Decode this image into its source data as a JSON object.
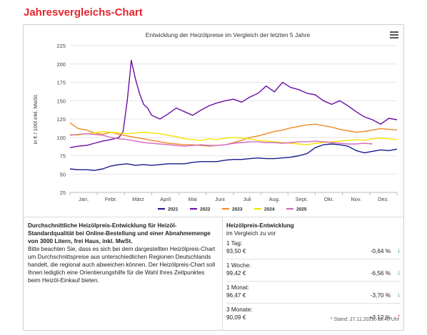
{
  "page": {
    "title": "Jahresvergleichs-Chart"
  },
  "menu": {
    "icon": "hamburger-menu-icon"
  },
  "chart_data": {
    "type": "line",
    "title": "Entwicklung der Heizölpreise im Vergleich der letzten 5 Jahre",
    "ylabel": "in € / 100l inkl. MwSt.",
    "ylim": [
      25,
      225
    ],
    "yticks": [
      25,
      50,
      75,
      100,
      125,
      150,
      175,
      200,
      225
    ],
    "xlim": [
      0,
      12
    ],
    "month_labels": [
      "Jan.",
      "Febr.",
      "März",
      "April",
      "Mai",
      "Juni",
      "Juli",
      "Aug.",
      "Sept.",
      "Okt.",
      "Nov.",
      "Dez."
    ],
    "grid": true,
    "legend_position": "bottom",
    "series": [
      {
        "name": "2021",
        "color": "#1a1a8c",
        "x": [
          0.0,
          0.3,
          0.6,
          0.9,
          1.2,
          1.5,
          1.8,
          2.1,
          2.4,
          2.7,
          3.0,
          3.3,
          3.6,
          3.9,
          4.2,
          4.5,
          4.8,
          5.1,
          5.4,
          5.7,
          6.0,
          6.3,
          6.6,
          6.9,
          7.2,
          7.5,
          7.8,
          8.1,
          8.4,
          8.7,
          9.0,
          9.3,
          9.6,
          9.9,
          10.2,
          10.5,
          10.8,
          11.1,
          11.4,
          11.7,
          12.0
        ],
        "y": [
          57,
          56,
          56,
          55,
          57,
          61,
          63,
          64,
          62,
          63,
          62,
          63,
          64,
          64,
          64,
          66,
          67,
          67,
          67,
          69,
          70,
          70,
          71,
          72,
          71,
          71,
          72,
          73,
          75,
          78,
          86,
          90,
          91,
          90,
          88,
          82,
          79,
          81,
          83,
          82,
          84
        ]
      },
      {
        "name": "2022",
        "color": "#6a0fa3",
        "x": [
          0.0,
          0.3,
          0.6,
          0.9,
          1.2,
          1.5,
          1.8,
          1.95,
          2.1,
          2.25,
          2.4,
          2.55,
          2.7,
          2.85,
          3.0,
          3.3,
          3.6,
          3.9,
          4.2,
          4.5,
          4.8,
          5.1,
          5.4,
          5.7,
          6.0,
          6.3,
          6.6,
          6.9,
          7.2,
          7.5,
          7.8,
          8.1,
          8.4,
          8.7,
          9.0,
          9.3,
          9.6,
          9.9,
          10.2,
          10.5,
          10.8,
          11.1,
          11.4,
          11.7,
          12.0
        ],
        "y": [
          86,
          88,
          89,
          92,
          95,
          97,
          100,
          108,
          150,
          205,
          180,
          160,
          145,
          140,
          130,
          125,
          132,
          140,
          135,
          130,
          137,
          143,
          147,
          150,
          152,
          148,
          155,
          160,
          170,
          162,
          175,
          168,
          165,
          160,
          158,
          150,
          145,
          150,
          143,
          135,
          128,
          124,
          118,
          126,
          124
        ]
      },
      {
        "name": "2023",
        "color": "#f08a24",
        "x": [
          0.0,
          0.3,
          0.6,
          0.9,
          1.2,
          1.5,
          1.8,
          2.1,
          2.4,
          2.7,
          3.0,
          3.3,
          3.6,
          3.9,
          4.2,
          4.5,
          4.8,
          5.1,
          5.4,
          5.7,
          6.0,
          6.3,
          6.6,
          6.9,
          7.2,
          7.5,
          7.8,
          8.1,
          8.4,
          8.7,
          9.0,
          9.3,
          9.6,
          9.9,
          10.2,
          10.5,
          10.8,
          11.1,
          11.4,
          11.7,
          12.0
        ],
        "y": [
          120,
          112,
          110,
          106,
          104,
          107,
          104,
          102,
          100,
          98,
          96,
          94,
          92,
          91,
          90,
          90,
          89,
          88,
          89,
          90,
          93,
          96,
          100,
          102,
          105,
          108,
          110,
          113,
          115,
          117,
          118,
          116,
          114,
          111,
          109,
          107,
          108,
          110,
          112,
          111,
          110
        ]
      },
      {
        "name": "2024",
        "color": "#f2e400",
        "x": [
          0.0,
          0.3,
          0.6,
          0.9,
          1.2,
          1.5,
          1.8,
          2.1,
          2.4,
          2.7,
          3.0,
          3.3,
          3.6,
          3.9,
          4.2,
          4.5,
          4.8,
          5.1,
          5.4,
          5.7,
          6.0,
          6.3,
          6.6,
          6.9,
          7.2,
          7.5,
          7.8,
          8.1,
          8.4,
          8.7,
          9.0,
          9.3,
          9.6,
          9.9,
          10.2,
          10.5,
          10.8,
          11.1,
          11.4,
          11.7,
          12.0
        ],
        "y": [
          104,
          103,
          105,
          106,
          108,
          107,
          106,
          105,
          106,
          107,
          106,
          105,
          103,
          101,
          98,
          97,
          96,
          98,
          97,
          99,
          100,
          99,
          98,
          96,
          95,
          94,
          93,
          92,
          91,
          90,
          92,
          93,
          94,
          95,
          96,
          97,
          96,
          98,
          99,
          98,
          97
        ]
      },
      {
        "name": "2025",
        "color": "#d46ac0",
        "x": [
          0.0,
          0.3,
          0.6,
          0.9,
          1.2,
          1.5,
          1.8,
          2.1,
          2.4,
          2.7,
          3.0,
          3.3,
          3.6,
          3.9,
          4.2,
          4.5,
          4.8,
          5.1,
          5.4,
          5.7,
          6.0,
          6.3,
          6.6,
          6.9,
          7.2,
          7.5,
          7.8,
          8.1,
          8.4,
          8.7,
          9.0,
          9.3,
          9.6,
          9.9,
          10.2,
          10.5,
          10.8,
          11.1
        ],
        "y": [
          103,
          104,
          105,
          104,
          103,
          100,
          98,
          97,
          95,
          93,
          92,
          91,
          90,
          89,
          88,
          89,
          90,
          89,
          89,
          90,
          92,
          93,
          94,
          94,
          93,
          93,
          92,
          93,
          94,
          94,
          95,
          94,
          93,
          92,
          91,
          91,
          92,
          91
        ]
      }
    ]
  },
  "description": {
    "bold": "Durchschnittliche Heizölpreis-Entwicklung für Heizöl-Standardqualität bei Online-Bestellung und einer Abnahmemenge von 3000 Litern, frei Haus, inkl. MwSt.",
    "text": "Bitte beachten Sie, dass es sich bei dem dargestellten Heizölpreis-Chart um Durchschnittspreise aus unterschiedlichen Regionen Deutschlands handelt, die regional auch abweichen können. Der Heizölpreis-Chart soll Ihnen lediglich eine Orientierungshilfe für die Wahl Ihres Zeitpunktes beim Heizöl-Einkauf bieten."
  },
  "panel": {
    "title": "Heizölpreis-Entwicklung",
    "subtitle": "im Vergleich zu vor",
    "rows": [
      {
        "label": "1 Tag:",
        "price": "93,50 €",
        "change": "-0,64 %",
        "arrow": "↓",
        "direction": "down"
      },
      {
        "label": "1 Woche:",
        "price": "99,42 €",
        "change": "-6,56 %",
        "arrow": "↓",
        "direction": "down"
      },
      {
        "label": "1 Monat:",
        "price": "96,47 €",
        "change": "-3,70 %",
        "arrow": "↓",
        "direction": "down"
      },
      {
        "label": "3 Monate:",
        "price": "90,09 €",
        "change": "+3,12 %",
        "arrow": "↑",
        "direction": "up"
      }
    ],
    "stand": "* Stand: 27.11.2025, 12:40 Uhr"
  }
}
